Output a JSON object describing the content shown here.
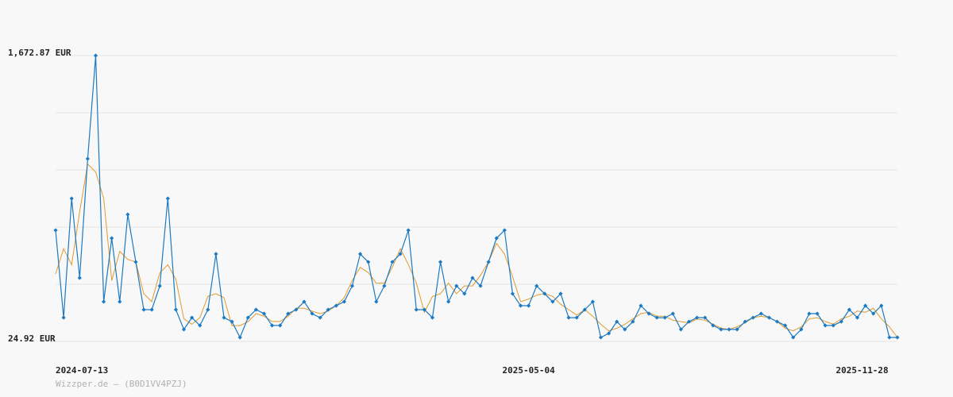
{
  "chart_data": {
    "type": "line",
    "source": "Wizzper.de – (B0D1VV4PZJ)",
    "x": [
      "2024-07-13",
      "2024-07-18",
      "2024-07-23",
      "2024-07-28",
      "2024-08-02",
      "2024-08-07",
      "2024-08-12",
      "2024-08-17",
      "2024-08-22",
      "2024-08-27",
      "2024-09-01",
      "2024-09-06",
      "2024-09-11",
      "2024-09-16",
      "2024-09-21",
      "2024-09-26",
      "2024-10-01",
      "2024-10-06",
      "2024-10-11",
      "2024-10-16",
      "2024-10-21",
      "2024-10-26",
      "2024-10-31",
      "2024-11-05",
      "2024-11-10",
      "2024-11-15",
      "2024-11-20",
      "2024-11-25",
      "2024-11-30",
      "2024-12-05",
      "2024-12-10",
      "2024-12-15",
      "2024-12-20",
      "2024-12-25",
      "2024-12-30",
      "2025-01-04",
      "2025-01-09",
      "2025-01-14",
      "2025-01-19",
      "2025-01-24",
      "2025-01-29",
      "2025-02-03",
      "2025-02-08",
      "2025-02-13",
      "2025-02-18",
      "2025-02-23",
      "2025-02-28",
      "2025-03-05",
      "2025-03-10",
      "2025-03-15",
      "2025-03-20",
      "2025-03-25",
      "2025-03-30",
      "2025-04-04",
      "2025-04-09",
      "2025-04-14",
      "2025-04-19",
      "2025-04-24",
      "2025-04-29",
      "2025-05-04",
      "2025-05-09",
      "2025-05-14",
      "2025-05-19",
      "2025-05-24",
      "2025-05-29",
      "2025-06-03",
      "2025-06-08",
      "2025-06-13",
      "2025-06-18",
      "2025-06-23",
      "2025-06-28",
      "2025-07-03",
      "2025-07-08",
      "2025-07-13",
      "2025-07-18",
      "2025-07-23",
      "2025-07-28",
      "2025-08-02",
      "2025-08-07",
      "2025-08-12",
      "2025-08-17",
      "2025-08-22",
      "2025-08-27",
      "2025-09-01",
      "2025-09-06",
      "2025-09-11",
      "2025-09-16",
      "2025-09-21",
      "2025-09-26",
      "2025-10-01",
      "2025-10-06",
      "2025-10-11",
      "2025-10-16",
      "2025-10-21",
      "2025-10-26",
      "2025-10-31",
      "2025-11-05",
      "2025-11-10",
      "2025-11-15",
      "2025-11-20",
      "2025-11-25",
      "2025-11-30",
      "2025-12-05",
      "2025-12-10",
      "2025-12-15",
      "2025-12-20"
    ],
    "series": [
      {
        "color": "#e39a2d",
        "markers": false,
        "values": [
          414,
          559,
          467,
          773,
          1047,
          1002,
          849,
          376,
          544,
          498,
          483,
          300,
          254,
          421,
          467,
          384,
          155,
          124,
          162,
          285,
          300,
          277,
          116,
          116,
          139,
          185,
          170,
          140,
          140,
          170,
          216,
          216,
          200,
          185,
          200,
          231,
          277,
          376,
          452,
          422,
          361,
          361,
          452,
          559,
          468,
          361,
          193,
          284,
          300,
          361,
          300,
          345,
          345,
          406,
          483,
          590,
          529,
          399,
          254,
          269,
          292,
          300,
          285,
          239,
          208,
          177,
          208,
          170,
          124,
          86,
          101,
          124,
          155,
          185,
          193,
          170,
          170,
          147,
          139,
          132,
          154,
          147,
          124,
          102,
          94,
          109,
          132,
          162,
          170,
          162,
          139,
          101,
          86,
          109,
          155,
          162,
          140,
          124,
          155,
          170,
          200,
          193,
          216,
          155,
          109,
          48
        ]
      },
      {
        "color": "#1b7ac2",
        "markers": true,
        "values": [
          666,
          162,
          849,
          391,
          1078,
          1673,
          254,
          620,
          254,
          757,
          483,
          208,
          208,
          345,
          849,
          208,
          94,
          162,
          117,
          208,
          529,
          162,
          139,
          48,
          162,
          208,
          185,
          117,
          117,
          185,
          208,
          254,
          185,
          162,
          208,
          231,
          254,
          345,
          529,
          483,
          254,
          345,
          483,
          529,
          666,
          208,
          208,
          162,
          483,
          254,
          345,
          300,
          391,
          345,
          483,
          620,
          666,
          300,
          231,
          231,
          345,
          300,
          254,
          300,
          162,
          162,
          208,
          254,
          48,
          71,
          139,
          94,
          139,
          231,
          185,
          162,
          162,
          185,
          94,
          139,
          162,
          162,
          117,
          94,
          94,
          94,
          139,
          162,
          185,
          162,
          139,
          117,
          48,
          94,
          185,
          185,
          117,
          117,
          139,
          208,
          162,
          231,
          185,
          231,
          48,
          48
        ]
      }
    ],
    "xlim": [
      "2024-07-13",
      "2025-12-20"
    ],
    "xticks": [
      "2024-07-13",
      "2025-05-04",
      "2025-11-28"
    ],
    "ylim": [
      24.92,
      1672.87
    ],
    "yticks": [
      {
        "value": 24.92,
        "label": "24.92 EUR"
      },
      {
        "value": 354.51,
        "label": null
      },
      {
        "value": 684.1,
        "label": null
      },
      {
        "value": 1013.69,
        "label": null
      },
      {
        "value": 1343.28,
        "label": null
      },
      {
        "value": 1672.87,
        "label": "1,672.87 EUR"
      }
    ],
    "grid": true
  }
}
